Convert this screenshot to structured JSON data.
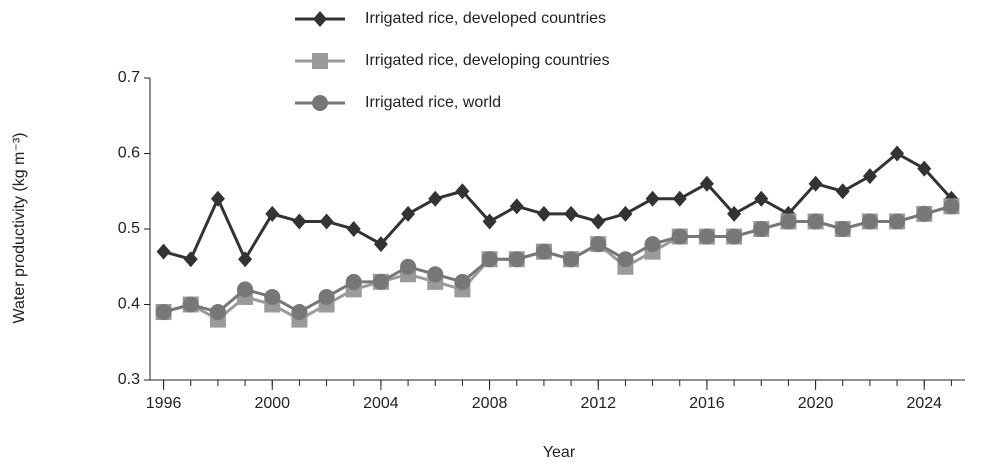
{
  "chart_data": {
    "type": "line",
    "x_label": "Year",
    "y_label": "Water productivity (kg m⁻³)",
    "x": [
      1996,
      1997,
      1998,
      1999,
      2000,
      2001,
      2002,
      2003,
      2004,
      2005,
      2006,
      2007,
      2008,
      2009,
      2010,
      2011,
      2012,
      2013,
      2014,
      2015,
      2016,
      2017,
      2018,
      2019,
      2020,
      2021,
      2022,
      2023,
      2024,
      2025
    ],
    "series": [
      {
        "name": "Irrigated rice, developed countries",
        "color": "#333333",
        "marker": "diamond",
        "values": [
          0.47,
          0.46,
          0.54,
          0.46,
          0.52,
          0.51,
          0.51,
          0.5,
          0.48,
          0.52,
          0.54,
          0.55,
          0.51,
          0.53,
          0.52,
          0.52,
          0.51,
          0.52,
          0.54,
          0.54,
          0.56,
          0.52,
          0.54,
          0.52,
          0.56,
          0.55,
          0.57,
          0.6,
          0.58,
          0.54
        ]
      },
      {
        "name": "Irrigated rice, developing countries",
        "color": "#9a9a9a",
        "marker": "square",
        "values": [
          0.39,
          0.4,
          0.38,
          0.41,
          0.4,
          0.38,
          0.4,
          0.42,
          0.43,
          0.44,
          0.43,
          0.42,
          0.46,
          0.46,
          0.47,
          0.46,
          0.48,
          0.45,
          0.47,
          0.49,
          0.49,
          0.49,
          0.5,
          0.51,
          0.51,
          0.5,
          0.51,
          0.51,
          0.52,
          0.53
        ]
      },
      {
        "name": "Irrigated rice, world",
        "color": "#777777",
        "marker": "circle",
        "values": [
          0.39,
          0.4,
          0.39,
          0.42,
          0.41,
          0.39,
          0.41,
          0.43,
          0.43,
          0.45,
          0.44,
          0.43,
          0.46,
          0.46,
          0.47,
          0.46,
          0.48,
          0.46,
          0.48,
          0.49,
          0.49,
          0.49,
          0.5,
          0.51,
          0.51,
          0.5,
          0.51,
          0.51,
          0.52,
          0.53
        ]
      }
    ],
    "xlim": [
      1995.5,
      2025.5
    ],
    "xticks": [
      1996,
      2000,
      2004,
      2008,
      2012,
      2016,
      2020,
      2024
    ],
    "ylim": [
      0.3,
      0.7
    ],
    "yticks": [
      0.3,
      0.4,
      0.5,
      0.6,
      0.7
    ]
  }
}
